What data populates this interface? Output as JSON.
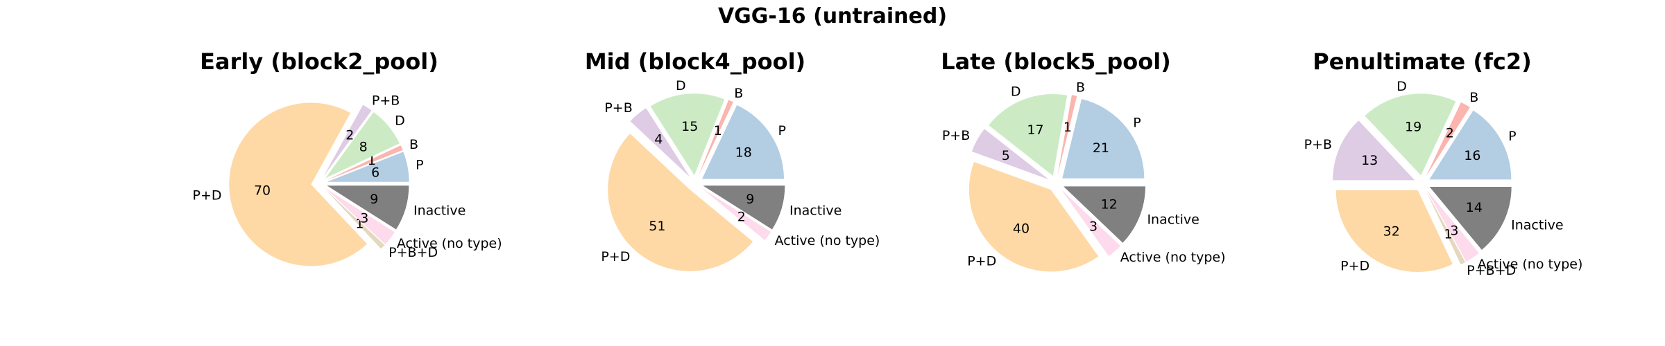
{
  "figure": {
    "title": "VGG-16 (untrained)"
  },
  "chart_data": [
    {
      "type": "pie",
      "title": "Early (block2_pool)",
      "slices": [
        {
          "label": "P",
          "value": 6,
          "color": "#b3cde3"
        },
        {
          "label": "B",
          "value": 1,
          "color": "#fbb4ae"
        },
        {
          "label": "D",
          "value": 8,
          "color": "#ccebc5"
        },
        {
          "label": "P+B",
          "value": 2,
          "color": "#decbe4"
        },
        {
          "label": "P+D",
          "value": 70,
          "color": "#fed9a6"
        },
        {
          "label": "P+B+D",
          "value": 1,
          "color": "#e5d8bd"
        },
        {
          "label": "Active (no type)",
          "value": 3,
          "color": "#fddaec"
        },
        {
          "label": "Inactive",
          "value": 9,
          "color": "#808080"
        }
      ]
    },
    {
      "type": "pie",
      "title": "Mid (block4_pool)",
      "slices": [
        {
          "label": "P",
          "value": 18,
          "color": "#b3cde3"
        },
        {
          "label": "B",
          "value": 1,
          "color": "#fbb4ae"
        },
        {
          "label": "D",
          "value": 15,
          "color": "#ccebc5"
        },
        {
          "label": "P+B",
          "value": 4,
          "color": "#decbe4"
        },
        {
          "label": "P+D",
          "value": 51,
          "color": "#fed9a6"
        },
        {
          "label": "Active (no type)",
          "value": 2,
          "color": "#fddaec"
        },
        {
          "label": "Inactive",
          "value": 9,
          "color": "#808080"
        }
      ]
    },
    {
      "type": "pie",
      "title": "Late (block5_pool)",
      "slices": [
        {
          "label": "P",
          "value": 21,
          "color": "#b3cde3"
        },
        {
          "label": "B",
          "value": 1,
          "color": "#fbb4ae"
        },
        {
          "label": "D",
          "value": 17,
          "color": "#ccebc5"
        },
        {
          "label": "P+B",
          "value": 5,
          "color": "#decbe4"
        },
        {
          "label": "P+D",
          "value": 40,
          "color": "#fed9a6"
        },
        {
          "label": "Active (no type)",
          "value": 3,
          "color": "#fddaec"
        },
        {
          "label": "Inactive",
          "value": 12,
          "color": "#808080"
        }
      ]
    },
    {
      "type": "pie",
      "title": "Penultimate (fc2)",
      "slices": [
        {
          "label": "P",
          "value": 16,
          "color": "#b3cde3"
        },
        {
          "label": "B",
          "value": 2,
          "color": "#fbb4ae"
        },
        {
          "label": "D",
          "value": 19,
          "color": "#ccebc5"
        },
        {
          "label": "P+B",
          "value": 13,
          "color": "#decbe4"
        },
        {
          "label": "P+D",
          "value": 32,
          "color": "#fed9a6"
        },
        {
          "label": "P+B+D",
          "value": 1,
          "color": "#e5d8bd"
        },
        {
          "label": "Active (no type)",
          "value": 3,
          "color": "#fddaec"
        },
        {
          "label": "Inactive",
          "value": 14,
          "color": "#808080"
        }
      ]
    }
  ]
}
